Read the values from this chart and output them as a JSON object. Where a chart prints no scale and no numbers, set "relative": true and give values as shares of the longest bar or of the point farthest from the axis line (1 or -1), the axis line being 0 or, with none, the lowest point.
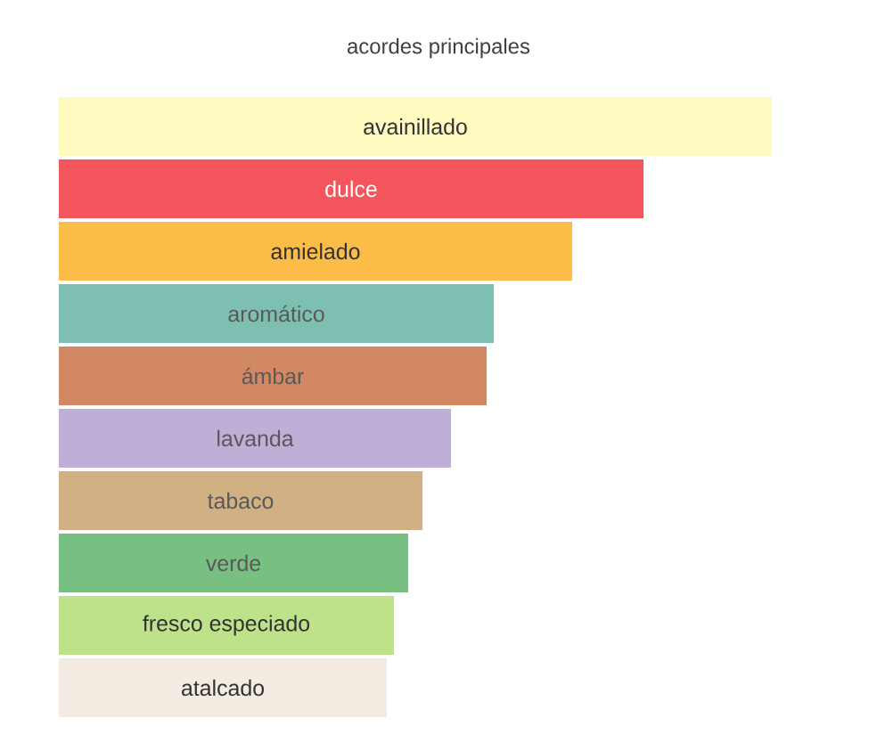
{
  "chart_data": {
    "type": "bar",
    "orientation": "horizontal",
    "relative": true,
    "title": "acordes principales",
    "categories": [
      "avainillado",
      "dulce",
      "amielado",
      "aromático",
      "ámbar",
      "lavanda",
      "tabaco",
      "verde",
      "fresco especiado",
      "atalcado"
    ],
    "values": [
      1,
      0.82,
      0.72,
      0.61,
      0.6,
      0.55,
      0.51,
      0.49,
      0.47,
      0.46
    ],
    "colors": [
      "#fffbc0",
      "#f4565e",
      "#fbbd48",
      "#7dbfb0",
      "#d28963",
      "#bfaed6",
      "#d1b083",
      "#78bf82",
      "#bee28a",
      "#f4ece3"
    ]
  }
}
